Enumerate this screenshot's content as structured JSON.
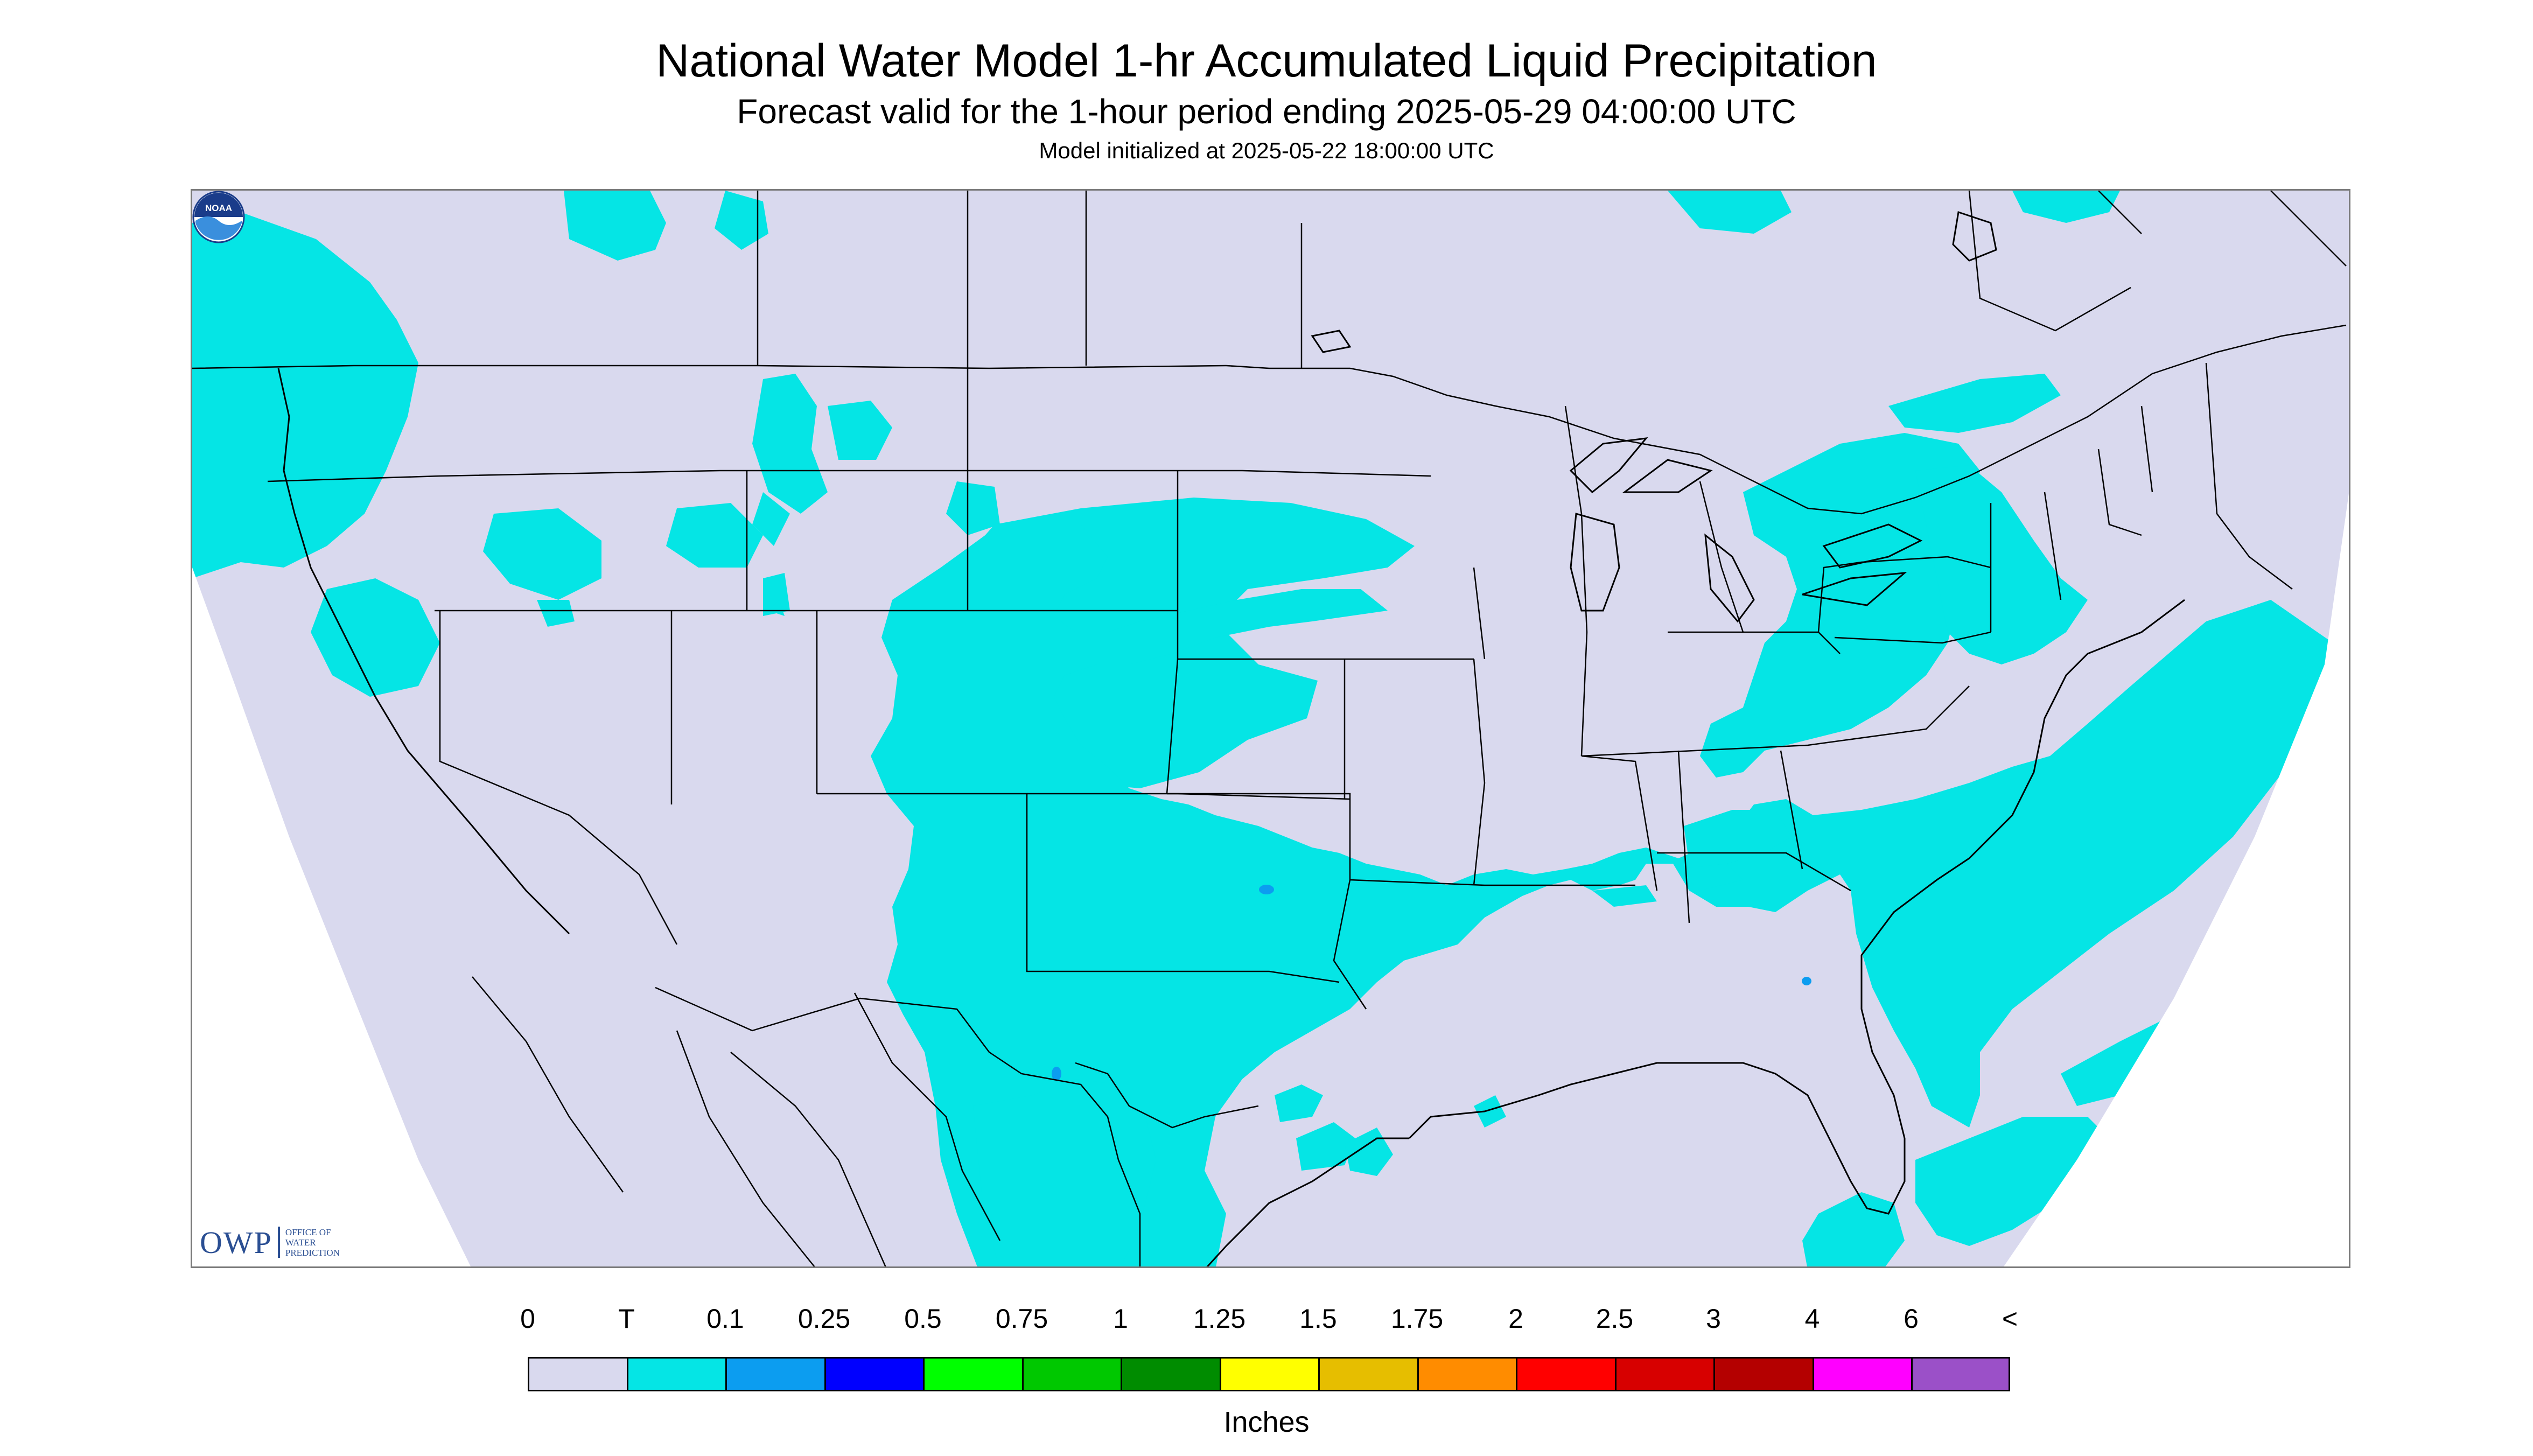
{
  "header": {
    "title": "National Water Model 1-hr Accumulated Liquid Precipitation",
    "subtitle": "Forecast valid for the 1-hour period ending 2025-05-29 04:00:00 UTC",
    "init": "Model initialized at 2025-05-22 18:00:00 UTC"
  },
  "logo_owp": {
    "mark": "OWP",
    "line1": "OFFICE OF",
    "line2": "WATER",
    "line3": "PREDICTION"
  },
  "logo_noaa": {
    "text": "NOAA"
  },
  "legend": {
    "units": "Inches",
    "tick_labels": [
      "0",
      "T",
      "0.1",
      "0.25",
      "0.5",
      "0.75",
      "1",
      "1.25",
      "1.5",
      "1.75",
      "2",
      "2.5",
      "3",
      "4",
      "6",
      "<"
    ],
    "colors": [
      "#d9d9ee",
      "#05e5e5",
      "#0c9df0",
      "#0000ff",
      "#00ff00",
      "#00c800",
      "#008c00",
      "#ffff00",
      "#e6be00",
      "#ff8c00",
      "#ff0000",
      "#d70000",
      "#b40000",
      "#ff00ff",
      "#9b50c8"
    ]
  },
  "map": {
    "no_data_color": "#d9d9ee",
    "precip_color": "#05e5e5",
    "outside_domain_color": "#ffffff",
    "boundary_color": "#000000"
  }
}
